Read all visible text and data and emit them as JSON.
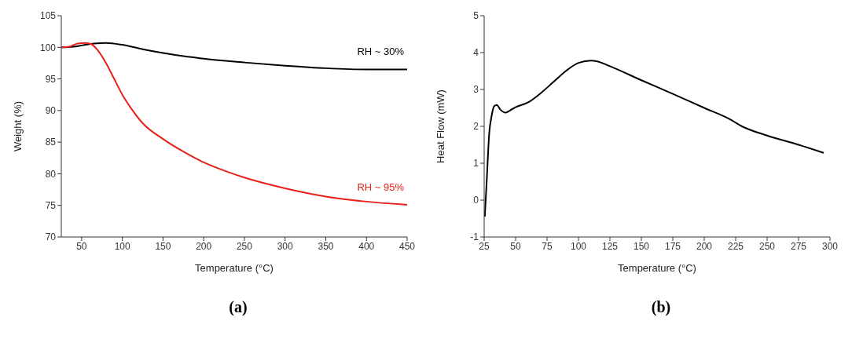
{
  "chart_data": [
    {
      "type": "line",
      "xlabel": "Temperature (°C)",
      "ylabel": "Weight (%)",
      "xlim": [
        25,
        450
      ],
      "xticks": [
        50,
        100,
        150,
        200,
        250,
        300,
        350,
        400,
        450
      ],
      "ylim": [
        70,
        105
      ],
      "yticks": [
        70,
        75,
        80,
        85,
        90,
        95,
        100,
        105
      ],
      "grid": false,
      "legend": false,
      "annotations": [
        "(a)"
      ],
      "series": [
        {
          "name": "RH ~ 30%",
          "color": "#000000",
          "x": [
            25,
            40,
            50,
            65,
            80,
            100,
            125,
            150,
            175,
            200,
            250,
            300,
            350,
            400,
            450
          ],
          "values": [
            100,
            100.1,
            100.3,
            100.6,
            100.7,
            100.4,
            99.7,
            99.1,
            98.6,
            98.2,
            97.6,
            97.1,
            96.7,
            96.5,
            96.5
          ]
        },
        {
          "name": "RH ~ 95%",
          "color": "#e8201c",
          "x": [
            25,
            35,
            45,
            55,
            62,
            70,
            80,
            90,
            100,
            110,
            125,
            150,
            175,
            200,
            225,
            250,
            300,
            350,
            400,
            450
          ],
          "values": [
            100,
            100.1,
            100.6,
            100.7,
            100.5,
            99.5,
            97.5,
            95,
            92.5,
            90.5,
            88,
            85.5,
            83.5,
            81.8,
            80.5,
            79.4,
            77.7,
            76.4,
            75.6,
            75.1
          ]
        }
      ]
    },
    {
      "type": "line",
      "xlabel": "Temperature (°C)",
      "ylabel": "Heat Flow (mW)",
      "xlim": [
        25,
        300
      ],
      "xticks": [
        25,
        50,
        75,
        100,
        125,
        150,
        175,
        200,
        225,
        250,
        275,
        300
      ],
      "ylim": [
        -1,
        5
      ],
      "yticks": [
        -1,
        0,
        1,
        2,
        3,
        4,
        5
      ],
      "grid": false,
      "legend": false,
      "annotations": [
        "(b)"
      ],
      "series": [
        {
          "color": "#000000",
          "x": [
            25.5,
            27,
            29,
            31,
            33,
            35,
            38,
            42,
            45,
            50,
            60,
            70,
            80,
            90,
            100,
            110,
            115,
            125,
            150,
            175,
            200,
            220,
            230,
            250,
            275,
            295
          ],
          "values": [
            -0.45,
            0.5,
            1.8,
            2.3,
            2.55,
            2.58,
            2.45,
            2.37,
            2.42,
            2.52,
            2.65,
            2.9,
            3.2,
            3.5,
            3.72,
            3.78,
            3.76,
            3.63,
            3.25,
            2.88,
            2.5,
            2.2,
            2,
            1.75,
            1.5,
            1.28
          ]
        }
      ]
    }
  ]
}
